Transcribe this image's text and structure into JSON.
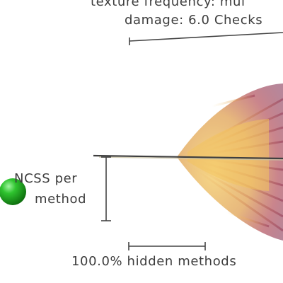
{
  "labels": {
    "texture_frequency": "texture frequency: mul",
    "damage": "damage: 6.0 Checks",
    "ncss_line1": "NCSS per",
    "ncss_line2": "method",
    "hidden_methods": "100.0% hidden methods"
  },
  "colors": {
    "text": "#3d3d3d",
    "axis": "#444444",
    "sphere": "#1aa31a",
    "flame_core": "#f0c860",
    "flame_edge": "#8a2a4a"
  },
  "legend_icons": {
    "sphere": "green-sphere-icon",
    "glyph": "feather-glyph"
  }
}
